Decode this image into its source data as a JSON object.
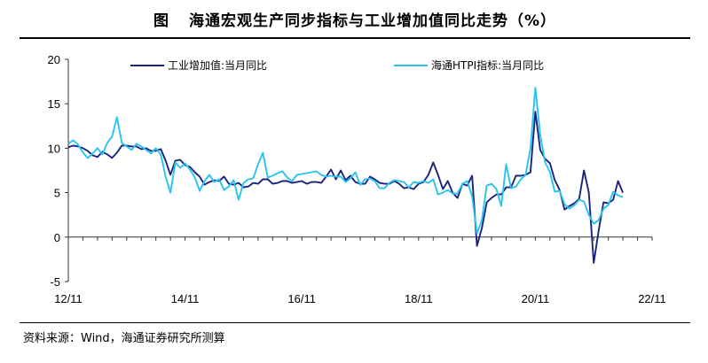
{
  "header": {
    "figure_label": "图",
    "title": "海通宏观生产同步指标与工业增加值同比走势（%）"
  },
  "source_note": "资料来源：Wind，海通证券研究所测算",
  "chart_data": {
    "type": "line",
    "title": "海通宏观生产同步指标与工业增加值同比走势（%）",
    "xlabel": "",
    "ylabel": "",
    "x_tick_labels": [
      "12/11",
      "14/11",
      "16/11",
      "18/11",
      "20/11",
      "22/11"
    ],
    "x_tick_values": [
      0,
      24,
      48,
      72,
      96,
      120
    ],
    "xlim": [
      0,
      120
    ],
    "ylim": [
      -5,
      20
    ],
    "y_ticks": [
      -5,
      0,
      5,
      10,
      15,
      20
    ],
    "grid": false,
    "legend_position": "top",
    "series": [
      {
        "name": "工业增加值:当月同比",
        "color": "#1a237e",
        "points": [
          [
            0,
            10.1
          ],
          [
            1,
            10.3
          ],
          [
            2,
            10.2
          ],
          [
            3,
            10
          ],
          [
            4,
            9.7
          ],
          [
            5,
            9.2
          ],
          [
            6,
            9
          ],
          [
            7,
            9.6
          ],
          [
            8,
            9.3
          ],
          [
            9,
            8.9
          ],
          [
            10,
            9.5
          ],
          [
            11,
            10.3
          ],
          [
            12,
            10.3
          ],
          [
            13,
            10.2
          ],
          [
            14,
            10.2
          ],
          [
            15,
            9.9
          ],
          [
            16,
            10
          ],
          [
            17,
            9.7
          ],
          [
            18,
            9.7
          ],
          [
            19,
            9.9
          ],
          [
            20,
            8.6
          ],
          [
            21,
            7
          ],
          [
            22,
            8.6
          ],
          [
            23,
            8.7
          ],
          [
            24,
            8.1
          ],
          [
            25,
            7.9
          ],
          [
            26,
            7.3
          ],
          [
            27,
            6.8
          ],
          [
            28,
            5.9
          ],
          [
            29,
            6.2
          ],
          [
            30,
            6.4
          ],
          [
            31,
            6.3
          ],
          [
            32,
            6.8
          ],
          [
            33,
            6
          ],
          [
            34,
            5.9
          ],
          [
            35,
            6.1
          ],
          [
            36,
            5.6
          ],
          [
            37,
            5.7
          ],
          [
            38,
            6.1
          ],
          [
            39,
            6
          ],
          [
            40,
            6.5
          ],
          [
            41,
            6.5
          ],
          [
            42,
            6
          ],
          [
            43,
            6.1
          ],
          [
            44,
            6.3
          ],
          [
            45,
            6.3
          ],
          [
            46,
            6.1
          ],
          [
            47,
            6.2
          ],
          [
            48,
            6.3
          ],
          [
            49,
            6
          ],
          [
            50,
            6.2
          ],
          [
            51,
            6.2
          ],
          [
            52,
            6.1
          ],
          [
            53,
            6.8
          ],
          [
            54,
            7.6
          ],
          [
            55,
            6.5
          ],
          [
            56,
            7.5
          ],
          [
            57,
            6.4
          ],
          [
            58,
            6.9
          ],
          [
            59,
            6.2
          ],
          [
            60,
            6
          ],
          [
            61,
            6
          ],
          [
            62,
            6.8
          ],
          [
            63,
            6.5
          ],
          [
            64,
            6.1
          ],
          [
            65,
            6
          ],
          [
            66,
            6
          ],
          [
            67,
            6.3
          ],
          [
            68,
            6
          ],
          [
            69,
            5.5
          ],
          [
            70,
            5.6
          ],
          [
            71,
            5.4
          ],
          [
            72,
            6
          ],
          [
            73,
            6.2
          ],
          [
            74,
            7
          ],
          [
            75,
            8.4
          ],
          [
            76,
            7
          ],
          [
            77,
            5.4
          ],
          [
            78,
            6.3
          ],
          [
            79,
            5
          ],
          [
            80,
            4.4
          ],
          [
            81,
            6
          ],
          [
            82,
            5.8
          ],
          [
            83,
            6.9
          ],
          [
            84,
            -1
          ],
          [
            85,
            1
          ],
          [
            86,
            3.9
          ],
          [
            87,
            4.4
          ],
          [
            88,
            4.8
          ],
          [
            89,
            4.8
          ],
          [
            90,
            5.6
          ],
          [
            91,
            5.6
          ],
          [
            92,
            6.9
          ],
          [
            93,
            6.9
          ],
          [
            94,
            7
          ],
          [
            95,
            7.3
          ],
          [
            96,
            14.1
          ],
          [
            97,
            9.8
          ],
          [
            98,
            8.8
          ],
          [
            99,
            8.3
          ],
          [
            100,
            6.4
          ],
          [
            101,
            5.3
          ],
          [
            102,
            3.1
          ],
          [
            103,
            3.5
          ],
          [
            104,
            3.8
          ],
          [
            105,
            4.3
          ],
          [
            106,
            7.5
          ],
          [
            107,
            5
          ],
          [
            108,
            -2.9
          ],
          [
            109,
            0.7
          ],
          [
            110,
            3.9
          ],
          [
            111,
            3.8
          ],
          [
            112,
            4.2
          ],
          [
            113,
            6.3
          ],
          [
            114,
            5
          ]
        ]
      },
      {
        "name": "海通HTPI指标:当月同比",
        "color": "#27c4ef",
        "points": [
          [
            0,
            10.5
          ],
          [
            1,
            10.9
          ],
          [
            2,
            10.4
          ],
          [
            3,
            9.5
          ],
          [
            4,
            8.9
          ],
          [
            5,
            9.4
          ],
          [
            6,
            10
          ],
          [
            7,
            9.3
          ],
          [
            8,
            10.6
          ],
          [
            9,
            11.3
          ],
          [
            10,
            13.5
          ],
          [
            11,
            10.6
          ],
          [
            12,
            10.2
          ],
          [
            13,
            9.8
          ],
          [
            14,
            10.5
          ],
          [
            15,
            10.2
          ],
          [
            16,
            9.8
          ],
          [
            17,
            9.4
          ],
          [
            18,
            10
          ],
          [
            19,
            9.3
          ],
          [
            20,
            6.8
          ],
          [
            21,
            5
          ],
          [
            22,
            8.4
          ],
          [
            23,
            7.8
          ],
          [
            24,
            8.3
          ],
          [
            25,
            7.6
          ],
          [
            26,
            6.7
          ],
          [
            27,
            5.2
          ],
          [
            28,
            6.3
          ],
          [
            29,
            7
          ],
          [
            30,
            6.2
          ],
          [
            31,
            6.5
          ],
          [
            32,
            5.3
          ],
          [
            33,
            5.7
          ],
          [
            34,
            6.4
          ],
          [
            35,
            4.2
          ],
          [
            36,
            6.1
          ],
          [
            37,
            6.5
          ],
          [
            38,
            6.6
          ],
          [
            39,
            8.2
          ],
          [
            40,
            9.5
          ],
          [
            41,
            6.7
          ],
          [
            42,
            6.9
          ],
          [
            43,
            7.2
          ],
          [
            44,
            7.4
          ],
          [
            45,
            6.7
          ],
          [
            46,
            6.3
          ],
          [
            47,
            7
          ],
          [
            48,
            7.1
          ],
          [
            49,
            7.2
          ],
          [
            50,
            7.3
          ],
          [
            51,
            7.4
          ],
          [
            52,
            7
          ],
          [
            53,
            6.8
          ],
          [
            54,
            6.9
          ],
          [
            55,
            6.8
          ],
          [
            56,
            6.8
          ],
          [
            57,
            6.2
          ],
          [
            58,
            6.6
          ],
          [
            59,
            7.3
          ],
          [
            60,
            5.9
          ],
          [
            61,
            6.5
          ],
          [
            62,
            6.6
          ],
          [
            63,
            6.3
          ],
          [
            64,
            5.5
          ],
          [
            65,
            5.5
          ],
          [
            66,
            6.1
          ],
          [
            67,
            6.4
          ],
          [
            68,
            6.3
          ],
          [
            69,
            6.2
          ],
          [
            70,
            5.6
          ],
          [
            71,
            6.2
          ],
          [
            72,
            6.1
          ],
          [
            73,
            6.3
          ],
          [
            74,
            6.1
          ],
          [
            75,
            6.5
          ],
          [
            76,
            4.8
          ],
          [
            77,
            5
          ],
          [
            78,
            5.3
          ],
          [
            79,
            4.9
          ],
          [
            80,
            4.9
          ],
          [
            81,
            6
          ],
          [
            82,
            6.3
          ],
          [
            83,
            4.6
          ],
          [
            84,
            0.4
          ],
          [
            85,
            1.9
          ],
          [
            86,
            5.8
          ],
          [
            87,
            6
          ],
          [
            88,
            5.4
          ],
          [
            89,
            3.5
          ],
          [
            90,
            8.2
          ],
          [
            91,
            5.5
          ],
          [
            92,
            5.7
          ],
          [
            93,
            6.5
          ],
          [
            94,
            7
          ],
          [
            95,
            10
          ],
          [
            96,
            16.8
          ],
          [
            97,
            11.5
          ],
          [
            98,
            8.4
          ],
          [
            99,
            7.3
          ],
          [
            100,
            5.1
          ],
          [
            101,
            5.2
          ],
          [
            102,
            3.7
          ],
          [
            103,
            3.2
          ],
          [
            104,
            3.6
          ],
          [
            105,
            4.2
          ],
          [
            106,
            4
          ],
          [
            107,
            2.5
          ],
          [
            108,
            1.5
          ],
          [
            109,
            1.9
          ],
          [
            110,
            3.2
          ],
          [
            111,
            3.6
          ],
          [
            112,
            5.1
          ],
          [
            113,
            4.7
          ],
          [
            114,
            4.5
          ]
        ]
      }
    ]
  }
}
